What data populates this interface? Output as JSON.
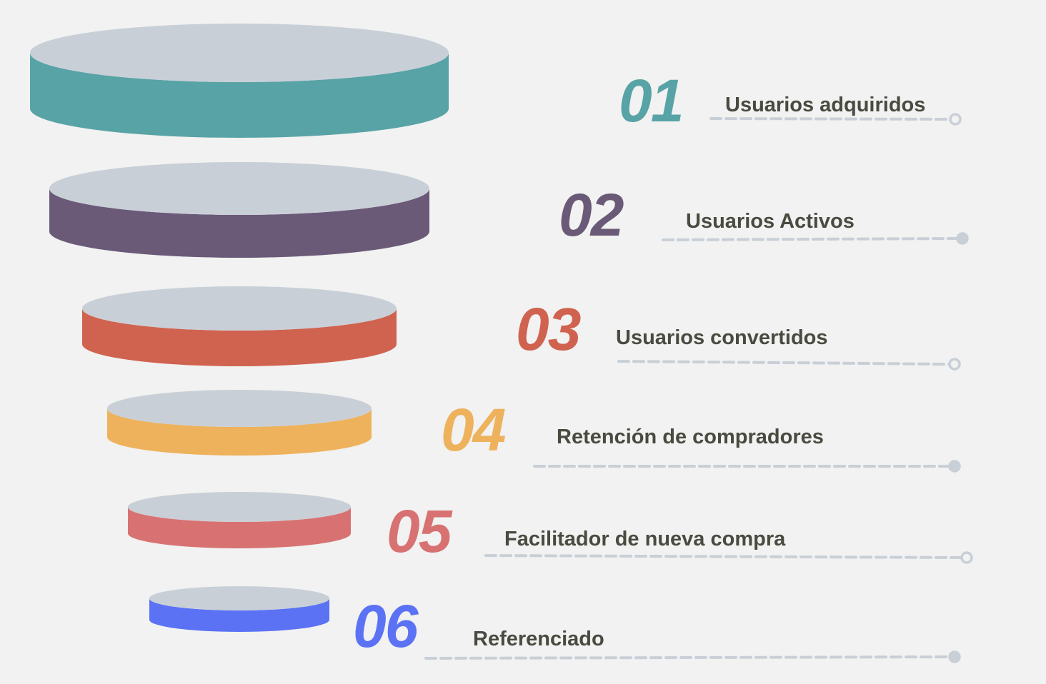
{
  "stages": [
    {
      "number": "01",
      "label": "Usuarios adquiridos",
      "color": "#58a3a6",
      "connector_end": "hollow"
    },
    {
      "number": "02",
      "label": "Usuarios Activos",
      "color": "#6a5a78",
      "connector_end": "filled"
    },
    {
      "number": "03",
      "label": "Usuarios convertidos",
      "color": "#d0634f",
      "connector_end": "hollow"
    },
    {
      "number": "04",
      "label": "Retención de compradores",
      "color": "#eeb25c",
      "connector_end": "filled"
    },
    {
      "number": "05",
      "label": "Facilitador de nueva compra",
      "color": "#d87272",
      "connector_end": "hollow"
    },
    {
      "number": "06",
      "label": "Referenciado",
      "color": "#5b72f5",
      "connector_end": "filled"
    }
  ],
  "top_face_color": "#c9cfd7",
  "connector_color": "#c9cfd7",
  "label_color": "#4a4a40"
}
